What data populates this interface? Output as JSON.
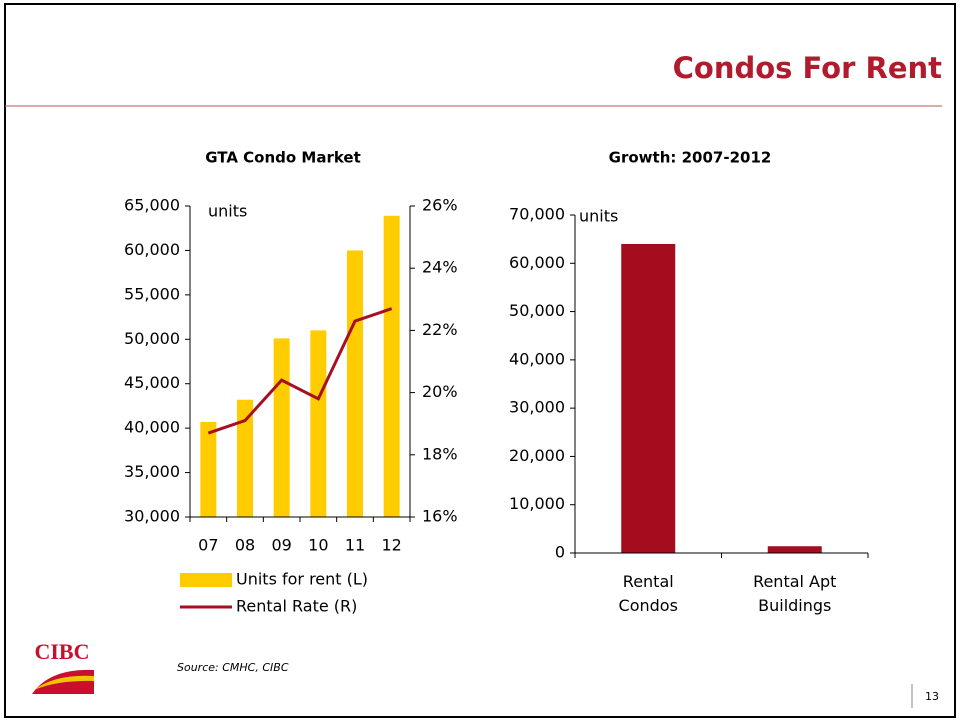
{
  "title": "Condos For Rent",
  "source": "Source: CMHC, CIBC",
  "page_number": "13",
  "logo": "CIBC",
  "chart_data": [
    {
      "type": "bar_line",
      "title": "GTA Condo Market",
      "annotation": "units",
      "categories": [
        "07",
        "08",
        "09",
        "10",
        "11",
        "12"
      ],
      "series": [
        {
          "name": "Units for rent (L)",
          "color": "#ffcc00",
          "type": "bar",
          "values": [
            40700,
            43200,
            50100,
            51000,
            60000,
            63900
          ]
        },
        {
          "name": "Rental Rate (R)",
          "color": "#a50f23",
          "type": "line",
          "axis": "y2",
          "values": [
            18.7,
            19.1,
            20.4,
            19.8,
            22.3,
            22.7
          ]
        }
      ],
      "ylim": [
        30000,
        65000
      ],
      "yticks": [
        {
          "value": 30000,
          "label": "30,000"
        },
        {
          "value": 35000,
          "label": "35,000"
        },
        {
          "value": 40000,
          "label": "40,000"
        },
        {
          "value": 45000,
          "label": "45,000"
        },
        {
          "value": 50000,
          "label": "50,000"
        },
        {
          "value": 55000,
          "label": "55,000"
        },
        {
          "value": 60000,
          "label": "60,000"
        },
        {
          "value": 65000,
          "label": "65,000"
        }
      ],
      "y2lim": [
        16,
        26
      ],
      "y2ticks": [
        {
          "value": 16,
          "label": "16%"
        },
        {
          "value": 18,
          "label": "18%"
        },
        {
          "value": 20,
          "label": "20%"
        },
        {
          "value": 22,
          "label": "22%"
        },
        {
          "value": 24,
          "label": "24%"
        },
        {
          "value": 26,
          "label": "26%"
        }
      ],
      "legend": "bottom"
    },
    {
      "type": "bar",
      "title": "Growth: 2007-2012",
      "annotation": "units",
      "categories": [
        "Rental Condos",
        "Rental Apt Buildings"
      ],
      "values": [
        64000,
        1400
      ],
      "color": "#a50d1e",
      "ylim": [
        0,
        70000
      ],
      "yticks": [
        0,
        {
          "value": 10000,
          "label": "10,000"
        },
        {
          "value": 20000,
          "label": "20,000"
        },
        {
          "value": 30000,
          "label": "30,000"
        },
        {
          "value": 40000,
          "label": "40,000"
        },
        {
          "value": 50000,
          "label": "50,000"
        },
        {
          "value": 60000,
          "label": "60,000"
        },
        {
          "value": 70000,
          "label": "70,000"
        }
      ]
    }
  ]
}
